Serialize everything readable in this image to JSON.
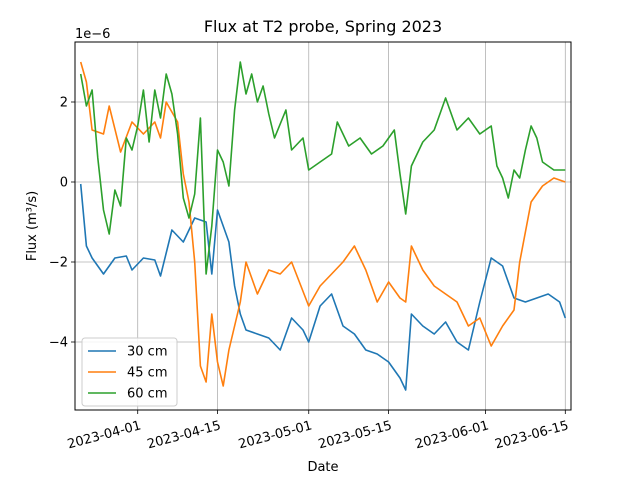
{
  "chart_data": {
    "type": "line",
    "title": "Flux at T2 probe, Spring 2023",
    "xlabel": "Date",
    "ylabel": "Flux (m³/s)",
    "y_scale_label": "1e−6",
    "xlim": [
      "2023-03-21",
      "2023-06-16"
    ],
    "ylim": [
      -5.7e-06,
      3.5e-06
    ],
    "x_ticks": [
      "2023-04-01",
      "2023-04-15",
      "2023-05-01",
      "2023-05-15",
      "2023-06-01",
      "2023-06-15"
    ],
    "y_ticks": [
      -4e-06,
      -2e-06,
      0,
      2e-06
    ],
    "y_tick_labels": [
      "−4",
      "−2",
      "0",
      "2"
    ],
    "grid": true,
    "legend_position": "lower-left",
    "series": [
      {
        "name": "30 cm",
        "color": "#1f77b4",
        "points": [
          [
            "2023-03-22",
            -5e-08
          ],
          [
            "2023-03-23",
            -1.6e-06
          ],
          [
            "2023-03-24",
            -1.9e-06
          ],
          [
            "2023-03-26",
            -2.3e-06
          ],
          [
            "2023-03-28",
            -1.9e-06
          ],
          [
            "2023-03-30",
            -1.85e-06
          ],
          [
            "2023-03-31",
            -2.2e-06
          ],
          [
            "2023-04-02",
            -1.9e-06
          ],
          [
            "2023-04-04",
            -1.95e-06
          ],
          [
            "2023-04-05",
            -2.35e-06
          ],
          [
            "2023-04-07",
            -1.2e-06
          ],
          [
            "2023-04-09",
            -1.5e-06
          ],
          [
            "2023-04-11",
            -9e-07
          ],
          [
            "2023-04-13",
            -1e-06
          ],
          [
            "2023-04-14",
            -2.3e-06
          ],
          [
            "2023-04-15",
            -7e-07
          ],
          [
            "2023-04-17",
            -1.5e-06
          ],
          [
            "2023-04-18",
            -2.6e-06
          ],
          [
            "2023-04-19",
            -3.3e-06
          ],
          [
            "2023-04-20",
            -3.7e-06
          ],
          [
            "2023-04-22",
            -3.8e-06
          ],
          [
            "2023-04-24",
            -3.9e-06
          ],
          [
            "2023-04-26",
            -4.2e-06
          ],
          [
            "2023-04-28",
            -3.4e-06
          ],
          [
            "2023-04-30",
            -3.7e-06
          ],
          [
            "2023-05-01",
            -4e-06
          ],
          [
            "2023-05-03",
            -3.1e-06
          ],
          [
            "2023-05-05",
            -2.8e-06
          ],
          [
            "2023-05-07",
            -3.6e-06
          ],
          [
            "2023-05-09",
            -3.8e-06
          ],
          [
            "2023-05-11",
            -4.2e-06
          ],
          [
            "2023-05-13",
            -4.3e-06
          ],
          [
            "2023-05-15",
            -4.5e-06
          ],
          [
            "2023-05-17",
            -4.9e-06
          ],
          [
            "2023-05-18",
            -5.2e-06
          ],
          [
            "2023-05-19",
            -3.3e-06
          ],
          [
            "2023-05-21",
            -3.6e-06
          ],
          [
            "2023-05-23",
            -3.8e-06
          ],
          [
            "2023-05-25",
            -3.5e-06
          ],
          [
            "2023-05-27",
            -4e-06
          ],
          [
            "2023-05-29",
            -4.2e-06
          ],
          [
            "2023-05-31",
            -3e-06
          ],
          [
            "2023-06-02",
            -1.9e-06
          ],
          [
            "2023-06-04",
            -2.1e-06
          ],
          [
            "2023-06-06",
            -2.9e-06
          ],
          [
            "2023-06-08",
            -3e-06
          ],
          [
            "2023-06-10",
            -2.9e-06
          ],
          [
            "2023-06-12",
            -2.8e-06
          ],
          [
            "2023-06-14",
            -3e-06
          ],
          [
            "2023-06-15",
            -3.4e-06
          ]
        ]
      },
      {
        "name": "45 cm",
        "color": "#ff7f0e",
        "points": [
          [
            "2023-03-22",
            3e-06
          ],
          [
            "2023-03-23",
            2.5e-06
          ],
          [
            "2023-03-24",
            1.3e-06
          ],
          [
            "2023-03-26",
            1.2e-06
          ],
          [
            "2023-03-27",
            1.9e-06
          ],
          [
            "2023-03-29",
            7.5e-07
          ],
          [
            "2023-03-31",
            1.5e-06
          ],
          [
            "2023-04-02",
            1.2e-06
          ],
          [
            "2023-04-04",
            1.5e-06
          ],
          [
            "2023-04-05",
            1.1e-06
          ],
          [
            "2023-04-06",
            2e-06
          ],
          [
            "2023-04-08",
            1.5e-06
          ],
          [
            "2023-04-09",
            2e-07
          ],
          [
            "2023-04-10",
            -5e-07
          ],
          [
            "2023-04-11",
            -2e-06
          ],
          [
            "2023-04-12",
            -4.6e-06
          ],
          [
            "2023-04-13",
            -5e-06
          ],
          [
            "2023-04-14",
            -3.3e-06
          ],
          [
            "2023-04-15",
            -4.5e-06
          ],
          [
            "2023-04-16",
            -5.1e-06
          ],
          [
            "2023-04-17",
            -4.2e-06
          ],
          [
            "2023-04-19",
            -3e-06
          ],
          [
            "2023-04-20",
            -2e-06
          ],
          [
            "2023-04-22",
            -2.8e-06
          ],
          [
            "2023-04-24",
            -2.2e-06
          ],
          [
            "2023-04-26",
            -2.3e-06
          ],
          [
            "2023-04-28",
            -2e-06
          ],
          [
            "2023-05-01",
            -3.1e-06
          ],
          [
            "2023-05-03",
            -2.6e-06
          ],
          [
            "2023-05-05",
            -2.3e-06
          ],
          [
            "2023-05-07",
            -2e-06
          ],
          [
            "2023-05-09",
            -1.6e-06
          ],
          [
            "2023-05-11",
            -2.2e-06
          ],
          [
            "2023-05-13",
            -3e-06
          ],
          [
            "2023-05-15",
            -2.5e-06
          ],
          [
            "2023-05-17",
            -2.9e-06
          ],
          [
            "2023-05-18",
            -3e-06
          ],
          [
            "2023-05-19",
            -1.6e-06
          ],
          [
            "2023-05-21",
            -2.2e-06
          ],
          [
            "2023-05-23",
            -2.6e-06
          ],
          [
            "2023-05-25",
            -2.8e-06
          ],
          [
            "2023-05-27",
            -3e-06
          ],
          [
            "2023-05-29",
            -3.6e-06
          ],
          [
            "2023-05-31",
            -3.4e-06
          ],
          [
            "2023-06-02",
            -4.1e-06
          ],
          [
            "2023-06-04",
            -3.6e-06
          ],
          [
            "2023-06-06",
            -3.2e-06
          ],
          [
            "2023-06-07",
            -2e-06
          ],
          [
            "2023-06-09",
            -5e-07
          ],
          [
            "2023-06-11",
            -1e-07
          ],
          [
            "2023-06-13",
            1e-07
          ],
          [
            "2023-06-15",
            0.0
          ]
        ]
      },
      {
        "name": "60 cm",
        "color": "#2ca02c",
        "points": [
          [
            "2023-03-22",
            2.7e-06
          ],
          [
            "2023-03-23",
            1.9e-06
          ],
          [
            "2023-03-24",
            2.3e-06
          ],
          [
            "2023-03-25",
            6e-07
          ],
          [
            "2023-03-26",
            -7e-07
          ],
          [
            "2023-03-27",
            -1.3e-06
          ],
          [
            "2023-03-28",
            -2e-07
          ],
          [
            "2023-03-29",
            -6e-07
          ],
          [
            "2023-03-30",
            1.1e-06
          ],
          [
            "2023-03-31",
            8e-07
          ],
          [
            "2023-04-01",
            1.4e-06
          ],
          [
            "2023-04-02",
            2.3e-06
          ],
          [
            "2023-04-03",
            1e-06
          ],
          [
            "2023-04-04",
            2.3e-06
          ],
          [
            "2023-04-05",
            1.6e-06
          ],
          [
            "2023-04-06",
            2.7e-06
          ],
          [
            "2023-04-07",
            2.2e-06
          ],
          [
            "2023-04-08",
            1.2e-06
          ],
          [
            "2023-04-09",
            -4e-07
          ],
          [
            "2023-04-10",
            -9e-07
          ],
          [
            "2023-04-11",
            -3e-07
          ],
          [
            "2023-04-12",
            1.6e-06
          ],
          [
            "2023-04-13",
            -2.3e-06
          ],
          [
            "2023-04-14",
            -1.1e-06
          ],
          [
            "2023-04-15",
            8e-07
          ],
          [
            "2023-04-16",
            5e-07
          ],
          [
            "2023-04-17",
            -1e-07
          ],
          [
            "2023-04-18",
            1.8e-06
          ],
          [
            "2023-04-19",
            3e-06
          ],
          [
            "2023-04-20",
            2.2e-06
          ],
          [
            "2023-04-21",
            2.7e-06
          ],
          [
            "2023-04-22",
            2e-06
          ],
          [
            "2023-04-23",
            2.4e-06
          ],
          [
            "2023-04-24",
            1.7e-06
          ],
          [
            "2023-04-25",
            1.1e-06
          ],
          [
            "2023-04-27",
            1.8e-06
          ],
          [
            "2023-04-28",
            8e-07
          ],
          [
            "2023-04-30",
            1.1e-06
          ],
          [
            "2023-05-01",
            3e-07
          ],
          [
            "2023-05-03",
            5e-07
          ],
          [
            "2023-05-05",
            7e-07
          ],
          [
            "2023-05-06",
            1.5e-06
          ],
          [
            "2023-05-08",
            9e-07
          ],
          [
            "2023-05-10",
            1.1e-06
          ],
          [
            "2023-05-12",
            7e-07
          ],
          [
            "2023-05-14",
            9e-07
          ],
          [
            "2023-05-16",
            1.3e-06
          ],
          [
            "2023-05-17",
            2e-07
          ],
          [
            "2023-05-18",
            -8e-07
          ],
          [
            "2023-05-19",
            4e-07
          ],
          [
            "2023-05-21",
            1e-06
          ],
          [
            "2023-05-23",
            1.3e-06
          ],
          [
            "2023-05-25",
            2.1e-06
          ],
          [
            "2023-05-27",
            1.3e-06
          ],
          [
            "2023-05-29",
            1.6e-06
          ],
          [
            "2023-05-31",
            1.2e-06
          ],
          [
            "2023-06-02",
            1.4e-06
          ],
          [
            "2023-06-03",
            4e-07
          ],
          [
            "2023-06-04",
            1e-07
          ],
          [
            "2023-06-05",
            -4e-07
          ],
          [
            "2023-06-06",
            3e-07
          ],
          [
            "2023-06-07",
            1e-07
          ],
          [
            "2023-06-08",
            8e-07
          ],
          [
            "2023-06-09",
            1.4e-06
          ],
          [
            "2023-06-10",
            1.1e-06
          ],
          [
            "2023-06-11",
            5e-07
          ],
          [
            "2023-06-13",
            3e-07
          ],
          [
            "2023-06-15",
            3e-07
          ]
        ]
      }
    ]
  }
}
